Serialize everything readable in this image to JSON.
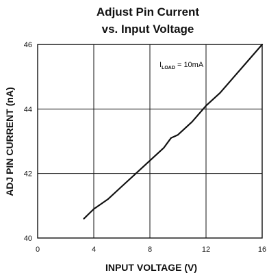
{
  "chart_data": {
    "type": "line",
    "title_line1": "Adjust Pin Current",
    "title_line2": "vs. Input Voltage",
    "xlabel": "INPUT VOLTAGE (V)",
    "ylabel": "ADJ PIN CURRENT (nA)",
    "xlim": [
      0,
      16
    ],
    "ylim": [
      40,
      46
    ],
    "x_ticks": [
      "0",
      "4",
      "8",
      "12",
      "16"
    ],
    "y_ticks": [
      "40",
      "42",
      "44",
      "46"
    ],
    "grid": true,
    "annotation": {
      "main": "I",
      "sub": "LOAD",
      "rest": " = 10mA"
    },
    "series": [
      {
        "x": [
          3.3,
          4.0,
          5.0,
          6.0,
          7.0,
          8.0,
          9.0,
          9.5,
          10.0,
          11.0,
          12.0,
          13.0,
          14.0,
          15.0,
          16.0
        ],
        "y": [
          40.6,
          40.9,
          41.2,
          41.6,
          42.0,
          42.4,
          42.8,
          43.1,
          43.2,
          43.6,
          44.1,
          44.5,
          45.0,
          45.5,
          46.0
        ]
      }
    ]
  }
}
